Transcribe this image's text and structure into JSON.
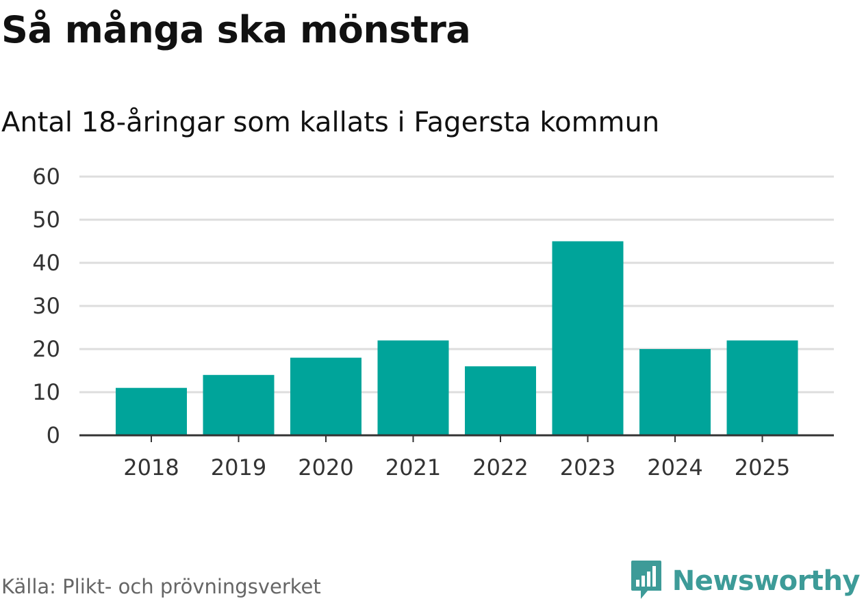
{
  "title": "Så många ska mönstra",
  "subtitle": "Antal 18-åringar som kallats i Fagersta kommun",
  "source": "Källa: Plikt- och prövningsverket",
  "brand": {
    "name": "Newsworthy",
    "icon": "newsworthy-logo-icon",
    "color": "#3d9b98"
  },
  "chart_data": {
    "type": "bar",
    "title": "Så många ska mönstra",
    "subtitle": "Antal 18-åringar som kallats i Fagersta kommun",
    "xlabel": "",
    "ylabel": "",
    "categories": [
      "2018",
      "2019",
      "2020",
      "2021",
      "2022",
      "2023",
      "2024",
      "2025"
    ],
    "values": [
      11,
      14,
      18,
      22,
      16,
      45,
      20,
      22
    ],
    "ylim": [
      0,
      60
    ],
    "yticks": [
      0,
      10,
      20,
      30,
      40,
      50,
      60
    ],
    "grid": true,
    "bar_color": "#00a49a",
    "grid_color": "#dddddd",
    "axis_color": "#333333"
  }
}
